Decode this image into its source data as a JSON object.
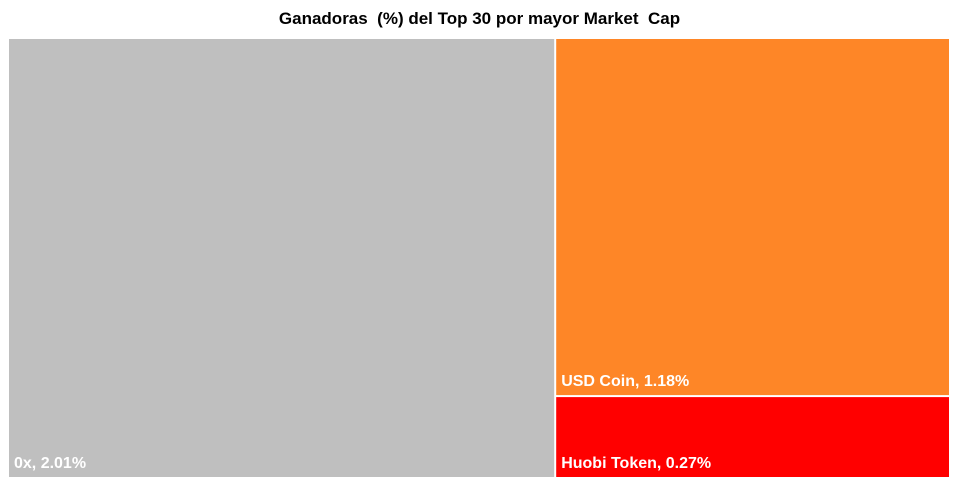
{
  "chart_data": {
    "type": "treemap",
    "title": "Ganadoras  (%) del Top 30 por mayor Market  Cap",
    "items": [
      {
        "name": "0x",
        "value": 2.01,
        "label": "0x, 2.01%",
        "color": "#bfbfbf"
      },
      {
        "name": "USD Coin",
        "value": 1.18,
        "label": "USD Coin,  1.18%",
        "color": "#fe8627"
      },
      {
        "name": "Huobi Token",
        "value": 0.27,
        "label": "Huobi  Token,  0.27%",
        "color": "#ff0000"
      }
    ]
  }
}
